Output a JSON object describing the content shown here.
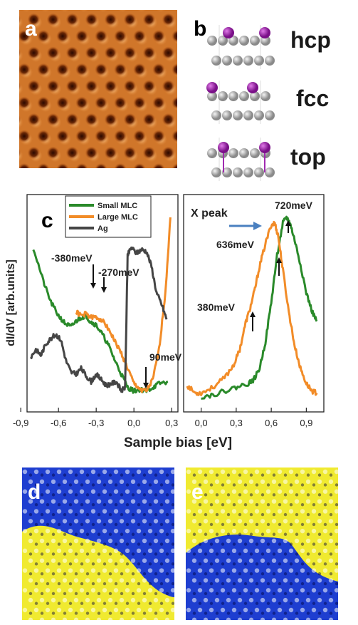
{
  "panels": {
    "a": {
      "label": "a"
    },
    "b": {
      "label": "b",
      "sites": [
        "hcp",
        "fcc",
        "top"
      ]
    },
    "c": {
      "label": "c"
    },
    "d": {
      "label": "d"
    },
    "e": {
      "label": "e"
    }
  },
  "colors": {
    "small_mlc": "#2a8a2a",
    "large_mlc": "#f28c28",
    "ag": "#454545",
    "x_peak_arrow": "#4a80c0",
    "atom_gray": "#b5b5b5",
    "atom_purple": "#a02ab0",
    "stm_orange": "#c8681e",
    "map_blue": "#1e3ed0",
    "map_yellow": "#f0ea30"
  },
  "chart_data": {
    "type": "line",
    "xlabel": "Sample bias [eV]",
    "ylabel": "dI/dV [arb.units]",
    "left": {
      "xlim": [
        -0.85,
        0.35
      ],
      "xticks": [
        "-0,9",
        "-0,6",
        "-0,3",
        "0,0",
        "0,3"
      ],
      "xtick_values": [
        -0.9,
        -0.6,
        -0.3,
        0.0,
        0.3
      ],
      "ylim": [
        0,
        1
      ],
      "legend": {
        "position": "top-left",
        "entries": [
          "Small MLC",
          "Large MLC",
          "Ag"
        ]
      },
      "series": [
        {
          "name": "Small MLC",
          "x": [
            -0.8,
            -0.72,
            -0.66,
            -0.6,
            -0.55,
            -0.5,
            -0.46,
            -0.42,
            -0.38,
            -0.35,
            -0.3,
            -0.25,
            -0.2,
            -0.15,
            -0.1,
            -0.05,
            0.0,
            0.05,
            0.1,
            0.15,
            0.2,
            0.27
          ],
          "y": [
            0.84,
            0.66,
            0.55,
            0.48,
            0.44,
            0.42,
            0.45,
            0.47,
            0.48,
            0.45,
            0.43,
            0.38,
            0.32,
            0.24,
            0.17,
            0.1,
            0.08,
            0.09,
            0.08,
            0.1,
            0.12,
            0.13
          ]
        },
        {
          "name": "Large MLC",
          "x": [
            -0.46,
            -0.42,
            -0.38,
            -0.34,
            -0.3,
            -0.26,
            -0.2,
            -0.15,
            -0.1,
            -0.05,
            0.0,
            0.05,
            0.1,
            0.15,
            0.2,
            0.25,
            0.29
          ],
          "y": [
            0.5,
            0.48,
            0.49,
            0.47,
            0.47,
            0.46,
            0.41,
            0.34,
            0.28,
            0.2,
            0.12,
            0.09,
            0.08,
            0.14,
            0.3,
            0.6,
            1.0
          ]
        },
        {
          "name": "Ag",
          "x": [
            -0.82,
            -0.78,
            -0.74,
            -0.7,
            -0.66,
            -0.62,
            -0.58,
            -0.54,
            -0.5,
            -0.46,
            -0.42,
            -0.38,
            -0.34,
            -0.3,
            -0.26,
            -0.22,
            -0.18,
            -0.14,
            -0.1,
            -0.07,
            -0.05,
            -0.02,
            0.02,
            0.06,
            0.1,
            0.14,
            0.18,
            0.22,
            0.26
          ],
          "y": [
            0.26,
            0.3,
            0.27,
            0.33,
            0.36,
            0.38,
            0.35,
            0.24,
            0.18,
            0.17,
            0.2,
            0.16,
            0.13,
            0.17,
            0.14,
            0.11,
            0.12,
            0.13,
            0.08,
            0.1,
            0.8,
            0.84,
            0.81,
            0.83,
            0.82,
            0.74,
            0.6,
            0.54,
            0.46
          ]
        }
      ],
      "annotations": [
        {
          "text": "-380meV",
          "x": -0.38
        },
        {
          "text": "-270meV",
          "x": -0.27
        },
        {
          "text": "90meV",
          "x": 0.09
        }
      ]
    },
    "right": {
      "xlim": [
        -0.15,
        1.05
      ],
      "xticks": [
        "0,0",
        "0,3",
        "0,6",
        "0,9"
      ],
      "xtick_values": [
        0.0,
        0.3,
        0.6,
        0.9
      ],
      "ylim": [
        0,
        1
      ],
      "series": [
        {
          "name": "Small MLC",
          "x": [
            0.0,
            0.1,
            0.2,
            0.3,
            0.4,
            0.45,
            0.5,
            0.55,
            0.6,
            0.65,
            0.7,
            0.73,
            0.76,
            0.8,
            0.85,
            0.9,
            0.95,
            0.99
          ],
          "y": [
            0.05,
            0.06,
            0.08,
            0.1,
            0.12,
            0.14,
            0.2,
            0.34,
            0.55,
            0.8,
            0.97,
            1.0,
            0.97,
            0.88,
            0.75,
            0.6,
            0.5,
            0.45
          ]
        },
        {
          "name": "Large MLC",
          "x": [
            -0.12,
            -0.05,
            0.0,
            0.1,
            0.2,
            0.28,
            0.33,
            0.38,
            0.42,
            0.46,
            0.5,
            0.55,
            0.6,
            0.63,
            0.66,
            0.7,
            0.75,
            0.8,
            0.85,
            0.9,
            0.95,
            0.99
          ],
          "y": [
            0.11,
            0.07,
            0.07,
            0.1,
            0.15,
            0.22,
            0.3,
            0.44,
            0.52,
            0.62,
            0.74,
            0.86,
            0.96,
            0.97,
            0.9,
            0.72,
            0.5,
            0.32,
            0.2,
            0.12,
            0.08,
            0.07
          ]
        }
      ],
      "annotations": [
        {
          "text": "X peak"
        },
        {
          "text": "720meV",
          "x": 0.72
        },
        {
          "text": "636meV",
          "x": 0.636
        },
        {
          "text": "380meV",
          "x": 0.38
        }
      ]
    }
  }
}
